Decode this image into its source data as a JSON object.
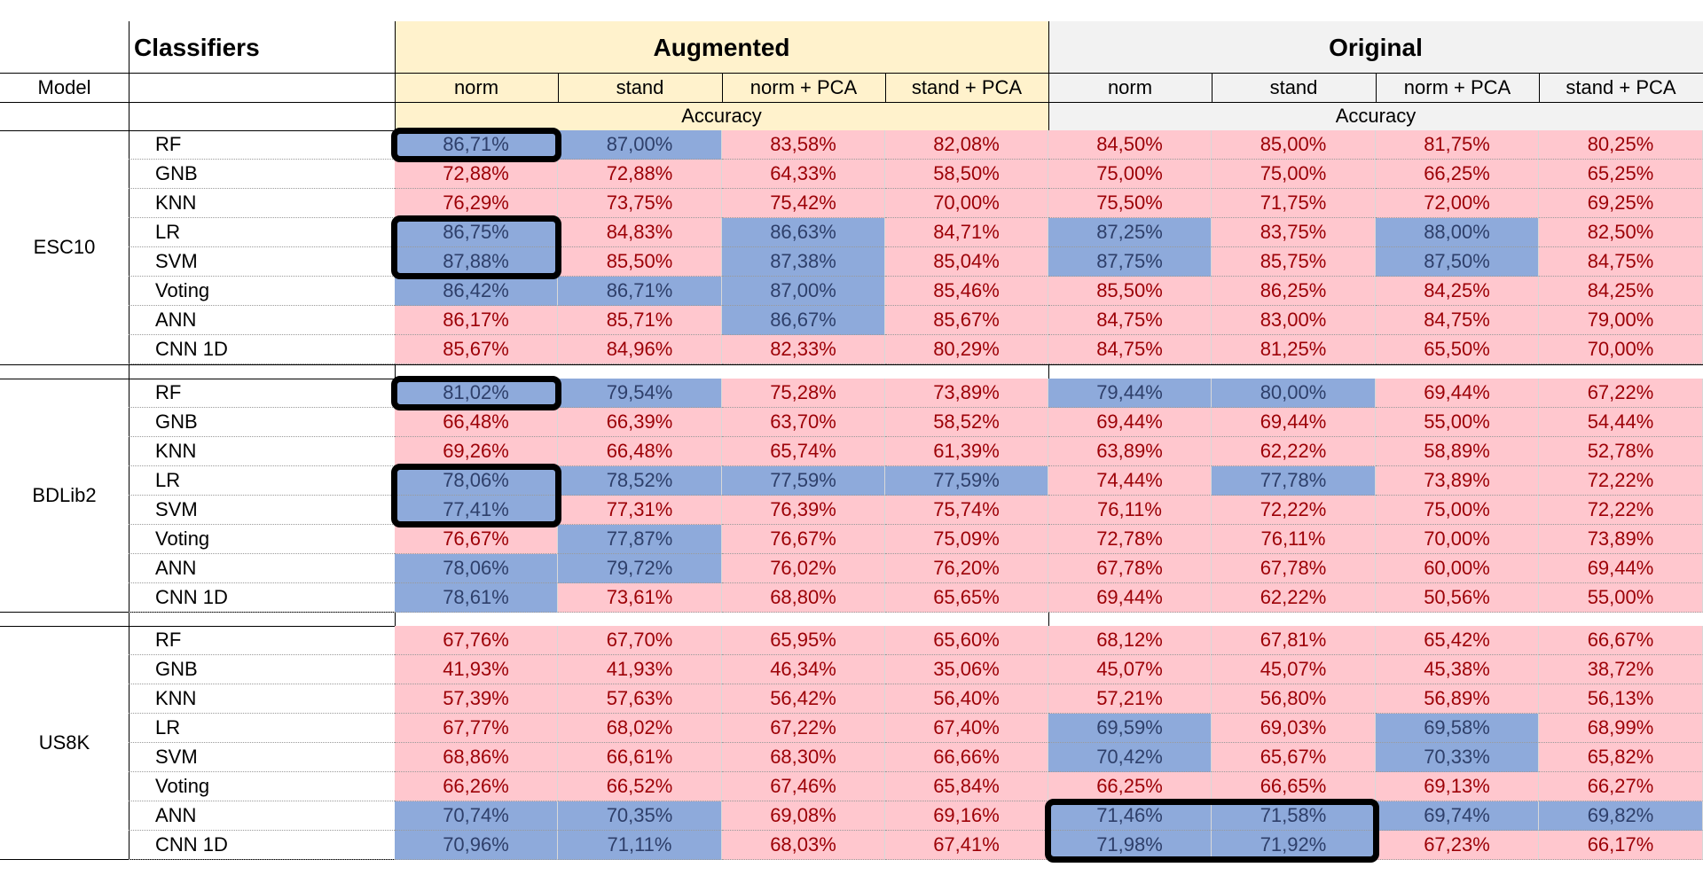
{
  "headers": {
    "classifiers": "Classifiers",
    "model": "Model",
    "augmented": "Augmented",
    "original": "Original",
    "accuracy": "Accuracy",
    "subcols": [
      "norm",
      "stand",
      "norm + PCA",
      "stand + PCA",
      "norm",
      "stand",
      "norm + PCA",
      "stand + PCA"
    ]
  },
  "colors": {
    "augmented_header_bg": "#fff2cc",
    "original_header_bg": "#f2f2f2",
    "low_cell_bg": "#ffc7ce",
    "low_cell_text": "#9c0006",
    "high_cell_bg": "#8eaadb",
    "high_cell_text": "#2e3f6a"
  },
  "blocks": [
    {
      "model": "ESC10",
      "rows": [
        {
          "clf": "RF",
          "values": [
            "86,71%",
            "87,00%",
            "83,58%",
            "82,08%",
            "84,50%",
            "85,00%",
            "81,75%",
            "80,25%"
          ],
          "blue": [
            0,
            1
          ]
        },
        {
          "clf": "GNB",
          "values": [
            "72,88%",
            "72,88%",
            "64,33%",
            "58,50%",
            "75,00%",
            "75,00%",
            "66,25%",
            "65,25%"
          ],
          "blue": []
        },
        {
          "clf": "KNN",
          "values": [
            "76,29%",
            "73,75%",
            "75,42%",
            "70,00%",
            "75,50%",
            "71,75%",
            "72,00%",
            "69,25%"
          ],
          "blue": []
        },
        {
          "clf": "LR",
          "values": [
            "86,75%",
            "84,83%",
            "86,63%",
            "84,71%",
            "87,25%",
            "83,75%",
            "88,00%",
            "82,50%"
          ],
          "blue": [
            0,
            2,
            4,
            6
          ]
        },
        {
          "clf": "SVM",
          "values": [
            "87,88%",
            "85,50%",
            "87,38%",
            "85,04%",
            "87,75%",
            "85,75%",
            "87,50%",
            "84,75%"
          ],
          "blue": [
            0,
            2,
            4,
            6
          ]
        },
        {
          "clf": "Voting",
          "values": [
            "86,42%",
            "86,71%",
            "87,00%",
            "85,46%",
            "85,50%",
            "86,25%",
            "84,25%",
            "84,25%"
          ],
          "blue": [
            0,
            1,
            2
          ]
        },
        {
          "clf": "ANN",
          "values": [
            "86,17%",
            "85,71%",
            "86,67%",
            "85,67%",
            "84,75%",
            "83,00%",
            "84,75%",
            "79,00%"
          ],
          "blue": [
            2
          ]
        },
        {
          "clf": "CNN 1D",
          "values": [
            "85,67%",
            "84,96%",
            "82,33%",
            "80,29%",
            "84,75%",
            "81,25%",
            "65,50%",
            "70,00%"
          ],
          "blue": []
        }
      ]
    },
    {
      "model": "BDLib2",
      "rows": [
        {
          "clf": "RF",
          "values": [
            "81,02%",
            "79,54%",
            "75,28%",
            "73,89%",
            "79,44%",
            "80,00%",
            "69,44%",
            "67,22%"
          ],
          "blue": [
            0,
            1,
            4,
            5
          ]
        },
        {
          "clf": "GNB",
          "values": [
            "66,48%",
            "66,39%",
            "63,70%",
            "58,52%",
            "69,44%",
            "69,44%",
            "55,00%",
            "54,44%"
          ],
          "blue": []
        },
        {
          "clf": "KNN",
          "values": [
            "69,26%",
            "66,48%",
            "65,74%",
            "61,39%",
            "63,89%",
            "62,22%",
            "58,89%",
            "52,78%"
          ],
          "blue": []
        },
        {
          "clf": "LR",
          "values": [
            "78,06%",
            "78,52%",
            "77,59%",
            "77,59%",
            "74,44%",
            "77,78%",
            "73,89%",
            "72,22%"
          ],
          "blue": [
            0,
            1,
            2,
            3,
            5
          ]
        },
        {
          "clf": "SVM",
          "values": [
            "77,41%",
            "77,31%",
            "76,39%",
            "75,74%",
            "76,11%",
            "72,22%",
            "75,00%",
            "72,22%"
          ],
          "blue": [
            0
          ]
        },
        {
          "clf": "Voting",
          "values": [
            "76,67%",
            "77,87%",
            "76,67%",
            "75,09%",
            "72,78%",
            "76,11%",
            "70,00%",
            "73,89%"
          ],
          "blue": [
            1
          ]
        },
        {
          "clf": "ANN",
          "values": [
            "78,06%",
            "79,72%",
            "76,02%",
            "76,20%",
            "67,78%",
            "67,78%",
            "60,00%",
            "69,44%"
          ],
          "blue": [
            0,
            1
          ]
        },
        {
          "clf": "CNN 1D",
          "values": [
            "78,61%",
            "73,61%",
            "68,80%",
            "65,65%",
            "69,44%",
            "62,22%",
            "50,56%",
            "55,00%"
          ],
          "blue": [
            0
          ]
        }
      ]
    },
    {
      "model": "US8K",
      "rows": [
        {
          "clf": "RF",
          "values": [
            "67,76%",
            "67,70%",
            "65,95%",
            "65,60%",
            "68,12%",
            "67,81%",
            "65,42%",
            "66,67%"
          ],
          "blue": []
        },
        {
          "clf": "GNB",
          "values": [
            "41,93%",
            "41,93%",
            "46,34%",
            "35,06%",
            "45,07%",
            "45,07%",
            "45,38%",
            "38,72%"
          ],
          "blue": []
        },
        {
          "clf": "KNN",
          "values": [
            "57,39%",
            "57,63%",
            "56,42%",
            "56,40%",
            "57,21%",
            "56,80%",
            "56,89%",
            "56,13%"
          ],
          "blue": []
        },
        {
          "clf": "LR",
          "values": [
            "67,77%",
            "68,02%",
            "67,22%",
            "67,40%",
            "69,59%",
            "69,03%",
            "69,58%",
            "68,99%"
          ],
          "blue": [
            4,
            6
          ]
        },
        {
          "clf": "SVM",
          "values": [
            "68,86%",
            "66,61%",
            "68,30%",
            "66,66%",
            "70,42%",
            "65,67%",
            "70,33%",
            "65,82%"
          ],
          "blue": [
            4,
            6
          ]
        },
        {
          "clf": "Voting",
          "values": [
            "66,26%",
            "66,52%",
            "67,46%",
            "65,84%",
            "66,25%",
            "66,65%",
            "69,13%",
            "66,27%"
          ],
          "blue": []
        },
        {
          "clf": "ANN",
          "values": [
            "70,74%",
            "70,35%",
            "69,08%",
            "69,16%",
            "71,46%",
            "71,58%",
            "69,74%",
            "69,82%"
          ],
          "blue": [
            0,
            1,
            4,
            5,
            6,
            7
          ]
        },
        {
          "clf": "CNN 1D",
          "values": [
            "70,96%",
            "71,11%",
            "68,03%",
            "67,41%",
            "71,98%",
            "71,92%",
            "67,23%",
            "66,17%"
          ],
          "blue": [
            0,
            1,
            4,
            5
          ]
        }
      ]
    }
  ],
  "highlights": [
    {
      "block": 0,
      "row_start": 0,
      "row_end": 0,
      "col_start": 0,
      "col_end": 0
    },
    {
      "block": 0,
      "row_start": 3,
      "row_end": 4,
      "col_start": 0,
      "col_end": 0
    },
    {
      "block": 1,
      "row_start": 0,
      "row_end": 0,
      "col_start": 0,
      "col_end": 0
    },
    {
      "block": 1,
      "row_start": 3,
      "row_end": 4,
      "col_start": 0,
      "col_end": 0
    },
    {
      "block": 2,
      "row_start": 6,
      "row_end": 7,
      "col_start": 4,
      "col_end": 5
    }
  ]
}
